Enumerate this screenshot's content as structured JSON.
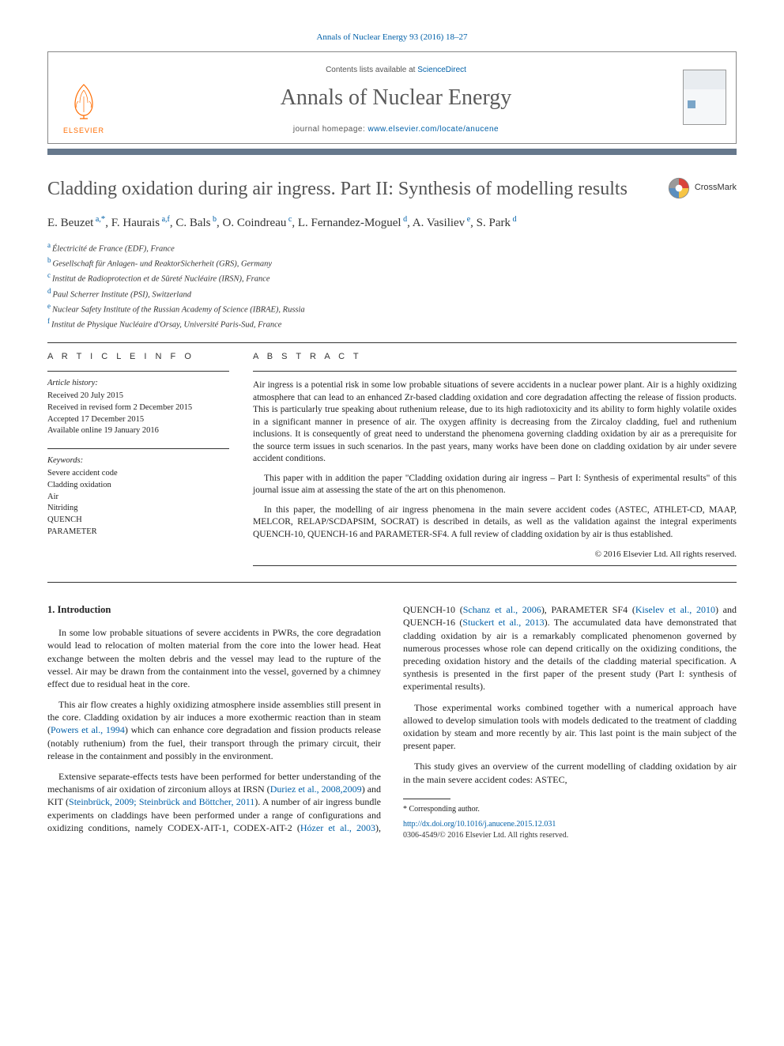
{
  "header": {
    "citation": "Annals of Nuclear Energy 93 (2016) 18–27",
    "contents_prefix": "Contents lists available at ",
    "contents_link": "ScienceDirect",
    "journal": "Annals of Nuclear Energy",
    "homepage_prefix": "journal homepage: ",
    "homepage_url": "www.elsevier.com/locate/anucene",
    "publisher": "ELSEVIER",
    "crossmark": "CrossMark"
  },
  "article": {
    "title": "Cladding oxidation during air ingress. Part II: Synthesis of modelling results",
    "authors_html": "E. Beuzet <sup>a,*</sup>, F. Haurais <sup>a,f</sup>, C. Bals <sup>b</sup>, O. Coindreau <sup>c</sup>, L. Fernandez-Moguel <sup>d</sup>, A. Vasiliev <sup>e</sup>, S. Park <sup>d</sup>",
    "authors": [
      {
        "name": "E. Beuzet",
        "aff": "a",
        "corr": true
      },
      {
        "name": "F. Haurais",
        "aff": "a,f"
      },
      {
        "name": "C. Bals",
        "aff": "b"
      },
      {
        "name": "O. Coindreau",
        "aff": "c"
      },
      {
        "name": "L. Fernandez-Moguel",
        "aff": "d"
      },
      {
        "name": "A. Vasiliev",
        "aff": "e"
      },
      {
        "name": "S. Park",
        "aff": "d"
      }
    ],
    "affiliations": {
      "a": "Électricité de France (EDF), France",
      "b": "Gesellschaft für Anlagen- und ReaktorSicherheit (GRS), Germany",
      "c": "Institut de Radioprotection et de Sûreté Nucléaire (IRSN), France",
      "d": "Paul Scherrer Institute (PSI), Switzerland",
      "e": "Nuclear Safety Institute of the Russian Academy of Science (IBRAE), Russia",
      "f": "Institut de Physique Nucléaire d'Orsay, Université Paris-Sud, France"
    }
  },
  "info": {
    "label": "A R T I C L E   I N F O",
    "history_heading": "Article history:",
    "history": [
      "Received 20 July 2015",
      "Received in revised form 2 December 2015",
      "Accepted 17 December 2015",
      "Available online 19 January 2016"
    ],
    "keywords_heading": "Keywords:",
    "keywords": [
      "Severe accident code",
      "Cladding oxidation",
      "Air",
      "Nitriding",
      "QUENCH",
      "PARAMETER"
    ]
  },
  "abstract": {
    "label": "A B S T R A C T",
    "paras": [
      "Air ingress is a potential risk in some low probable situations of severe accidents in a nuclear power plant. Air is a highly oxidizing atmosphere that can lead to an enhanced Zr-based cladding oxidation and core degradation affecting the release of fission products. This is particularly true speaking about ruthenium release, due to its high radiotoxicity and its ability to form highly volatile oxides in a significant manner in presence of air. The oxygen affinity is decreasing from the Zircaloy cladding, fuel and ruthenium inclusions. It is consequently of great need to understand the phenomena governing cladding oxidation by air as a prerequisite for the source term issues in such scenarios. In the past years, many works have been done on cladding oxidation by air under severe accident conditions.",
      "This paper with in addition the paper \"Cladding oxidation during air ingress – Part I: Synthesis of experimental results\" of this journal issue aim at assessing the state of the art on this phenomenon.",
      "In this paper, the modelling of air ingress phenomena in the main severe accident codes (ASTEC, ATHLET-CD, MAAP, MELCOR, RELAP/SCDAPSIM, SOCRAT) is described in details, as well as the validation against the integral experiments QUENCH-10, QUENCH-16 and PARAMETER-SF4. A full review of cladding oxidation by air is thus established."
    ],
    "copyright": "© 2016 Elsevier Ltd. All rights reserved."
  },
  "body": {
    "section_number": "1.",
    "section_title": "Introduction",
    "paras": [
      "In some low probable situations of severe accidents in PWRs, the core degradation would lead to relocation of molten material from the core into the lower head. Heat exchange between the molten debris and the vessel may lead to the rupture of the vessel. Air may be drawn from the containment into the vessel, governed by a chimney effect due to residual heat in the core.",
      "This air flow creates a highly oxidizing atmosphere inside assemblies still present in the core. Cladding oxidation by air induces a more exothermic reaction than in steam (<span class=\"cite-link\">Powers et al., 1994</span>) which can enhance core degradation and fission products release (notably ruthenium) from the fuel, their transport through the primary circuit, their release in the containment and possibly in the environment.",
      "Extensive separate-effects tests have been performed for better understanding of the mechanisms of air oxidation of zirconium alloys at IRSN (<span class=\"cite-link\">Duriez et al., 2008,2009</span>) and KIT (<span class=\"cite-link\">Steinbrück, 2009; Steinbrück and Böttcher, 2011</span>). A number of air ingress bundle experiments on claddings have been performed under a range of configurations and oxidizing conditions, namely CODEX-AIT-1, CODEX-AIT-2 (<span class=\"cite-link\">Hózer et al., 2003</span>), QUENCH-10 (<span class=\"cite-link\">Schanz et al., 2006</span>), PARAMETER SF4 (<span class=\"cite-link\">Kiselev et al., 2010</span>) and QUENCH-16 (<span class=\"cite-link\">Stuckert et al., 2013</span>). The accumulated data have demonstrated that cladding oxidation by air is a remarkably complicated phenomenon governed by numerous processes whose role can depend critically on the oxidizing conditions, the preceding oxidation history and the details of the cladding material specification. A synthesis is presented in the first paper of the present study (Part I: synthesis of experimental results).",
      "Those experimental works combined together with a numerical approach have allowed to develop simulation tools with models dedicated to the treatment of cladding oxidation by steam and more recently by air. This last point is the main subject of the present paper.",
      "This study gives an overview of the current modelling of cladding oxidation by air in the main severe accident codes: ASTEC,"
    ]
  },
  "footer": {
    "corr": "* Corresponding author.",
    "doi": "http://dx.doi.org/10.1016/j.anucene.2015.12.031",
    "issn": "0306-4549/© 2016 Elsevier Ltd. All rights reserved."
  },
  "colors": {
    "link": "#0060a8",
    "accent_bar": "#66788c",
    "elsevier_orange": "#ff6c00",
    "title_gray": "#535353"
  }
}
